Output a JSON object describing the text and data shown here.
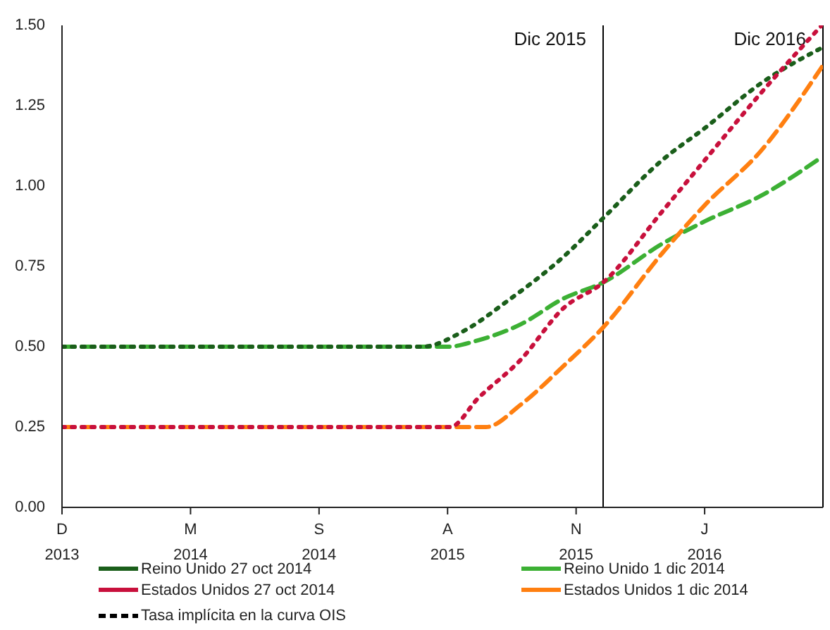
{
  "chart_data": {
    "type": "line",
    "xlim": [
      "2013-06-13",
      "2016-12-01"
    ],
    "xticks": [
      {
        "value": "2013-06-13",
        "label": "D 2013"
      },
      {
        "value": "2014-01-13",
        "label": "M 2014"
      },
      {
        "value": "2014-08-15",
        "label": "S 2014"
      },
      {
        "value": "2015-03-17",
        "label": "A 2015"
      },
      {
        "value": "2015-10-17",
        "label": "N 2015"
      },
      {
        "value": "2016-05-18",
        "label": "J 2016"
      }
    ],
    "ylim": [
      0,
      1.5
    ],
    "yticks": [
      {
        "value": 0,
        "label": "0.00"
      },
      0.25,
      {
        "value": 0.5,
        "label": "0.50"
      },
      0.75,
      {
        "value": 1,
        "label": "1.00"
      },
      1.25,
      {
        "value": 1.5,
        "label": "1.50"
      }
    ],
    "series": [
      {
        "name": "Reino Unido 27 oct 2014",
        "color": "#1a5e1a",
        "line_style": "dotted",
        "x": [
          "2013-06-13",
          "2014-01-13",
          "2014-08-15",
          "2015-02-02",
          "2015-04-14",
          "2015-06-23",
          "2015-09-26",
          "2015-12-01",
          "2016-03-08",
          "2016-05-18",
          "2016-08-20",
          "2016-11-29"
        ],
        "values": [
          0.5,
          0.5,
          0.5,
          0.5,
          0.55,
          0.64,
          0.78,
          0.9,
          1.08,
          1.18,
          1.32,
          1.43
        ]
      },
      {
        "name": "Estados Unidos 27 oct 2014",
        "color": "#c8103c",
        "line_style": "dotted",
        "x": [
          "2013-06-13",
          "2014-01-13",
          "2014-08-15",
          "2015-03-21",
          "2015-05-07",
          "2015-07-17",
          "2015-09-26",
          "2015-12-01",
          "2016-03-08",
          "2016-05-18",
          "2016-08-20",
          "2016-11-29"
        ],
        "values": [
          0.25,
          0.25,
          0.25,
          0.25,
          0.34,
          0.46,
          0.62,
          0.7,
          0.92,
          1.08,
          1.29,
          1.5
        ]
      },
      {
        "name": "Reino Unido 1 dic 2014",
        "color": "#3cb034",
        "line_style": "dashed",
        "x": [
          "2013-06-13",
          "2014-01-13",
          "2014-08-15",
          "2015-02-02",
          "2015-03-17",
          "2015-05-07",
          "2015-07-17",
          "2015-09-26",
          "2015-12-01",
          "2016-03-08",
          "2016-05-18",
          "2016-08-20",
          "2016-11-29"
        ],
        "values": [
          0.5,
          0.5,
          0.5,
          0.5,
          0.5,
          0.52,
          0.57,
          0.65,
          0.7,
          0.82,
          0.89,
          0.97,
          1.09
        ]
      },
      {
        "name": "Estados Unidos  1 dic 2014",
        "color": "#ff7f10",
        "line_style": "dashed",
        "x": [
          "2013-06-13",
          "2014-01-13",
          "2014-08-15",
          "2015-03-17",
          "2015-05-20",
          "2015-07-17",
          "2015-09-26",
          "2015-12-01",
          "2016-03-08",
          "2016-05-18",
          "2016-08-20",
          "2016-11-29"
        ],
        "values": [
          0.25,
          0.25,
          0.25,
          0.25,
          0.25,
          0.32,
          0.44,
          0.56,
          0.79,
          0.94,
          1.11,
          1.37
        ]
      }
    ],
    "ref_lines": [
      {
        "axis": "x",
        "value": "2015-12-01",
        "label": "Dic 2015",
        "color": "#000000"
      },
      {
        "axis": "x",
        "value": "2016-12-01",
        "label": "Dic 2016",
        "color": "#000000"
      }
    ],
    "annotations": [
      "Tasa implícita en la curva OIS"
    ],
    "legend": "bottom",
    "grid": false,
    "marker": "none"
  }
}
